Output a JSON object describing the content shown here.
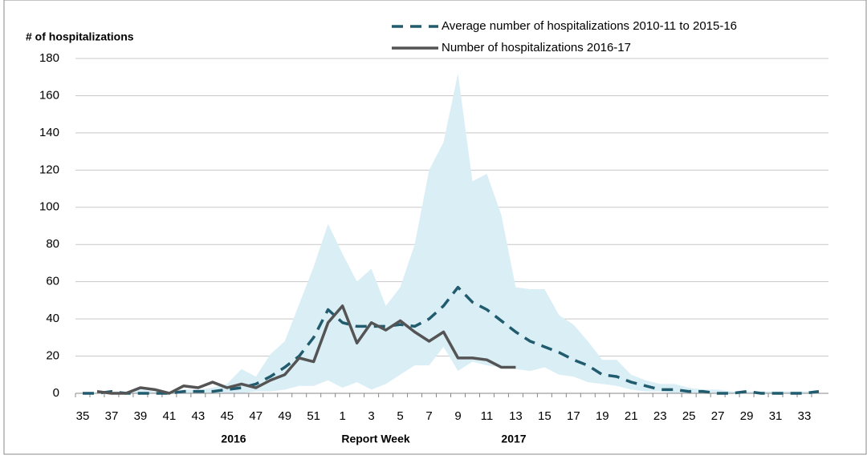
{
  "chart_data": {
    "type": "line",
    "y_label": "# of hospitalizations",
    "x_label": "Report Week",
    "annotations": [
      "2016",
      "2017"
    ],
    "categories": [
      "35",
      null,
      "37",
      null,
      "39",
      null,
      "41",
      null,
      "43",
      null,
      "45",
      null,
      "47",
      null,
      "49",
      null,
      "51",
      null,
      "1",
      null,
      "3",
      null,
      "5",
      null,
      "7",
      null,
      "9",
      null,
      "11",
      null,
      "13",
      null,
      "15",
      null,
      "17",
      null,
      "19",
      null,
      "21",
      null,
      "23",
      null,
      "25",
      null,
      "27",
      null,
      "29",
      null,
      "31",
      null,
      "33",
      null
    ],
    "ylim": [
      0,
      180
    ],
    "yticks": [
      0,
      20,
      40,
      60,
      80,
      100,
      120,
      140,
      160,
      180
    ],
    "grid": true,
    "legend": "top-right",
    "band": {
      "color": "#daeef6",
      "lower": [
        0,
        0,
        0,
        0,
        0,
        0,
        0,
        0,
        0,
        0,
        0,
        0,
        1,
        1,
        2,
        4,
        4,
        7,
        3,
        6,
        2,
        5,
        10,
        15,
        15,
        25,
        12,
        17,
        15,
        14,
        13,
        12,
        14,
        10,
        9,
        6,
        5,
        4,
        2,
        1,
        1,
        0,
        0,
        0,
        0,
        0,
        0,
        0,
        0,
        0,
        0,
        0
      ],
      "upper": [
        0,
        0,
        1,
        1,
        2,
        1,
        1,
        2,
        2,
        3,
        5,
        13,
        9,
        21,
        28,
        48,
        68,
        91,
        75,
        60,
        67,
        47,
        57,
        80,
        120,
        135,
        172,
        114,
        118,
        96,
        57,
        56,
        56,
        42,
        37,
        28,
        18,
        18,
        10,
        7,
        5,
        5,
        3,
        2,
        2,
        1,
        1,
        1,
        1,
        1,
        1,
        1
      ]
    },
    "series": [
      {
        "name": "Average number of hospitalizations 2010-11 to 2015-16",
        "color": "#215c6e",
        "dash": true,
        "values": [
          0,
          0,
          1,
          0,
          0,
          0,
          0,
          1,
          1,
          1,
          2,
          3,
          5,
          9,
          14,
          20,
          30,
          45,
          38,
          36,
          36,
          36,
          37,
          36,
          40,
          47,
          57,
          49,
          45,
          39,
          33,
          28,
          25,
          22,
          18,
          15,
          10,
          9,
          6,
          4,
          2,
          2,
          1,
          1,
          0,
          0,
          1,
          0,
          0,
          0,
          0,
          1
        ]
      },
      {
        "name": "Number of hospitalizations 2016-17",
        "color": "#545454",
        "dash": false,
        "values": [
          null,
          1,
          0,
          0,
          3,
          2,
          0,
          4,
          3,
          6,
          3,
          5,
          3,
          7,
          10,
          19,
          17,
          38,
          47,
          27,
          38,
          34,
          39,
          33,
          28,
          33,
          19,
          19,
          18,
          14,
          14,
          null,
          null,
          null,
          null,
          null,
          null,
          null,
          null,
          null,
          null,
          null,
          null,
          null,
          null,
          null,
          null,
          null,
          null,
          null,
          null,
          null
        ]
      }
    ]
  }
}
